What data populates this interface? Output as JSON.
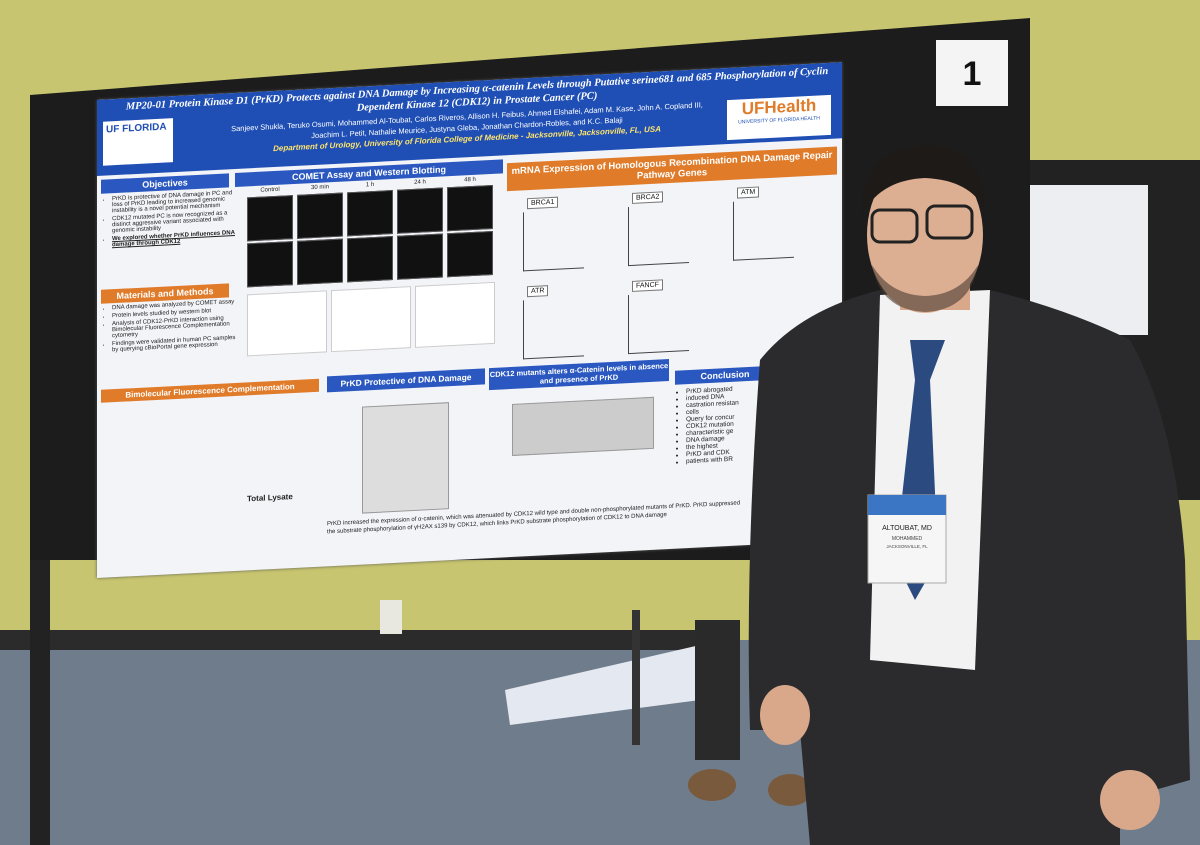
{
  "board_number": "1",
  "poster": {
    "title": "MP20-01 Protein Kinase D1 (PrKD) Protects against DNA Damage by Increasing α-catenin Levels through Putative serine681 and 685 Phosphorylation of Cyclin Dependent Kinase 12 (CDK12) in Prostate Cancer (PC)",
    "authors": [
      "Sanjeev Shukla, Teruko Osumi, Mohammed Al-Toubat, Carlos Riveros, Allison H. Feibus, Ahmed Elshafei, Adam M. Kase, John A. Copland III,",
      "Joachim L. Petit, Nathalie Meurice, Justyna Gleba, Jonathan Chardon-Robles, and K.C. Balaji"
    ],
    "affiliation": "Department of Urology, University of Florida College of Medicine - Jacksonville, Jacksonville, FL, USA",
    "logo_left": "UF FLORIDA",
    "logo_right": "UFHealth",
    "logo_right_sub": "UNIVERSITY OF FLORIDA HEALTH",
    "objectives": {
      "heading": "Objectives",
      "items": [
        "PrKD is protective of DNA damage in PC and loss of PrKD leading to increased genomic instability is a novel potential mechanism",
        "CDK12 mutated PC is now recognized as a distinct aggressive variant associated with genomic instability",
        "We explored whether PrKD influences DNA damage through CDK12"
      ]
    },
    "methods": {
      "heading": "Materials and Methods",
      "items": [
        "DNA damage was analyzed by COMET assay",
        "Protein levels studied by western blot",
        "Analysis of CDK12-PrKD interaction using Bimolecular Fluorescence Complementation cytometry",
        "Findings were validated in human PC samples by querying cBioPortal gene expression"
      ]
    },
    "comet": {
      "heading": "COMET Assay and Western Blotting",
      "columns": [
        "Control",
        "30 min",
        "1 h",
        "24 h",
        "48 h"
      ]
    },
    "mrna": {
      "heading": "mRNA Expression of Homologous Recombination DNA Damage Repair Pathway Genes",
      "genes": [
        "BRCA1",
        "BRCA2",
        "ATM",
        "ATR",
        "FANCF"
      ]
    },
    "bifc": {
      "heading": "Bimolecular Fluorescence Complementation",
      "sub": "Total Lysate"
    },
    "protective": {
      "heading": "PrKD Protective of DNA Damage",
      "text": "PrKD increased the expression of α-catenin, which was attenuated by CDK12 wild type and double non-phosphorylated mutants of PrKD. PrKD suppressed the substrate phosphorylation of γH2AX s139 by CDK12, which links PrKD substrate phosphorylation of CDK12 to DNA damage"
    },
    "cdk12": {
      "heading": "CDK12 mutants alters α-Catenin levels in absence and presence of PrKD"
    },
    "conclusion": {
      "heading": "Conclusion",
      "items": [
        "PrKD abrogated",
        "induced DNA",
        "castration resistan",
        "cells",
        "Query for concur",
        "CDK12 mutation",
        "characteristic ge",
        "DNA damage",
        "the highest",
        "PrKD and CDK",
        "patients with BR"
      ]
    }
  },
  "badge": {
    "name": "ALTOUBAT, MD",
    "first": "MOHAMMED",
    "city": "JACKSONVILLE, FL"
  }
}
